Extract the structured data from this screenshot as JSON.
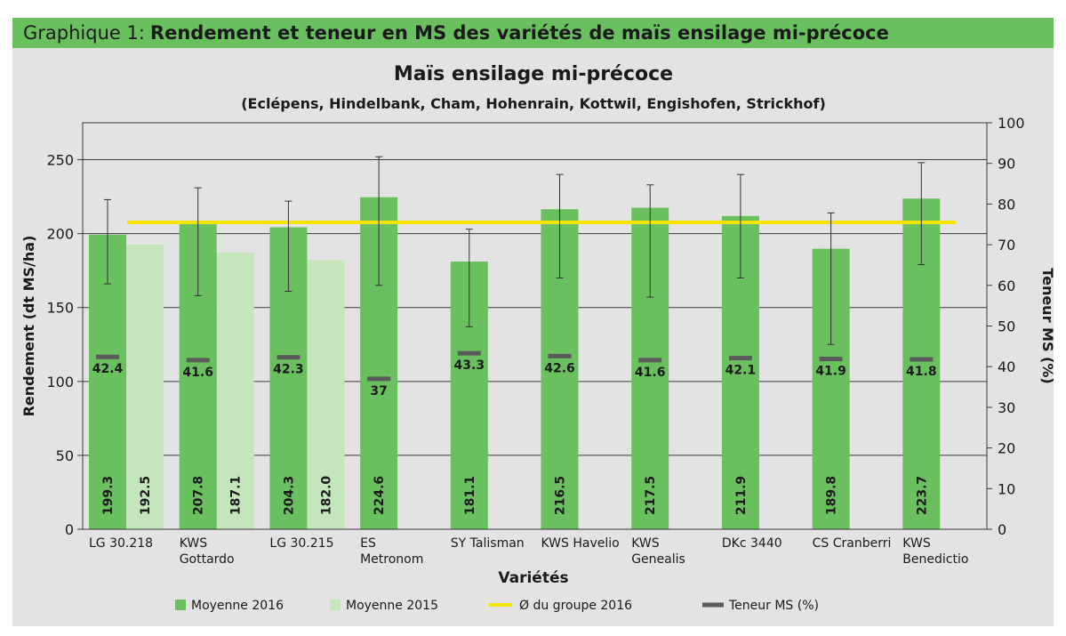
{
  "header": {
    "prefix": "Graphique 1:",
    "title": "Rendement et teneur en MS des variétés de maïs ensilage mi-précoce"
  },
  "chart_data": {
    "type": "bar",
    "title": "Maïs ensilage mi-précoce",
    "subtitle": "(Eclépens, Hindelbank, Cham, Hohenrain, Kottwil, Engishofen, Strickhof)",
    "xlabel": "Variétés",
    "ylabel": "Rendement (dt MS/ha)",
    "y2label": "Teneur MS (%)",
    "ylim": [
      0,
      275
    ],
    "y2lim": [
      0,
      100
    ],
    "yticks": [
      0,
      50,
      100,
      150,
      200,
      250
    ],
    "y2ticks": [
      0,
      10,
      20,
      30,
      40,
      50,
      60,
      70,
      80,
      90,
      100
    ],
    "grid": true,
    "legend_position": "bottom",
    "categories": [
      [
        "LG 30.218"
      ],
      [
        "KWS",
        "Gottardo"
      ],
      [
        "LG 30.215"
      ],
      [
        "ES",
        "Metronom"
      ],
      [
        "SY Talisman"
      ],
      [
        "KWS Havelio"
      ],
      [
        "KWS",
        "Genealis"
      ],
      [
        "DKc 3440"
      ],
      [
        "CS Cranberri"
      ],
      [
        "KWS",
        "Benedictio"
      ]
    ],
    "series": [
      {
        "name": "Moyenne 2016",
        "color": "#6abf5f",
        "values": [
          199.3,
          207.8,
          204.3,
          224.6,
          181.1,
          216.5,
          217.5,
          211.9,
          189.8,
          223.7
        ],
        "labels": [
          "199.3",
          "207.8",
          "204.3",
          "224.6",
          "181.1",
          "216.5",
          "217.5",
          "211.9",
          "189.8",
          "223.7"
        ],
        "error_low": [
          166,
          158,
          161,
          165,
          137,
          170,
          157,
          170,
          125,
          179
        ],
        "error_high": [
          223,
          231,
          222,
          252,
          203,
          240,
          233,
          240,
          214,
          248
        ]
      },
      {
        "name": "Moyenne 2015",
        "color": "#c5e5bd",
        "values": [
          192.5,
          187.1,
          182.0,
          null,
          null,
          null,
          null,
          null,
          null,
          null
        ],
        "labels": [
          "192.5",
          "187.1",
          "182.0",
          null,
          null,
          null,
          null,
          null,
          null,
          null
        ]
      }
    ],
    "group_mean": {
      "name": "Ø du groupe 2016",
      "color": "#f5e400",
      "y2": 75.5
    },
    "dm_content": {
      "name": "Teneur MS (%)",
      "color": "#5a5a5a",
      "values": [
        42.4,
        41.6,
        42.3,
        37,
        43.3,
        42.6,
        41.6,
        42.1,
        41.9,
        41.8
      ],
      "labels": [
        "42.4",
        "41.6",
        "42.3",
        "37",
        "43.3",
        "42.6",
        "41.6",
        "42.1",
        "41.9",
        "41.8"
      ]
    },
    "colors": {
      "grid": "#3a3a3a",
      "text": "#1a1a1a",
      "error_bar": "#333333"
    }
  }
}
